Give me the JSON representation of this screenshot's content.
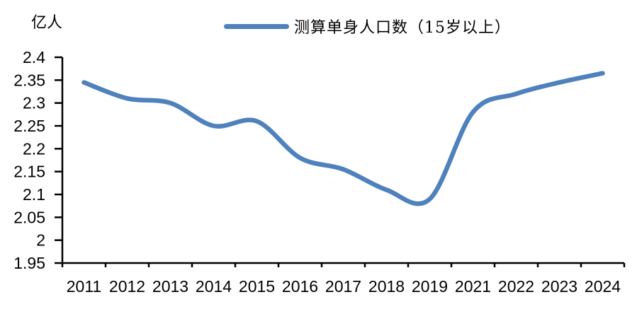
{
  "page": {
    "background": "#FFFFFF"
  },
  "chart_data": {
    "type": "line",
    "title": "",
    "unit_label": "亿人",
    "legend": {
      "label": "测算单身人口数（15岁以上）",
      "swatch_color": "#4F81BD"
    },
    "legend_position": "top-center",
    "categories": [
      "2011",
      "2012",
      "2013",
      "2014",
      "2015",
      "2016",
      "2017",
      "2018",
      "2019",
      "2021",
      "2022",
      "2023",
      "2024"
    ],
    "series": [
      {
        "name": "测算单身人口数（15岁以上）",
        "color": "#4F81BD",
        "values": [
          2.345,
          2.31,
          2.3,
          2.25,
          2.26,
          2.18,
          2.155,
          2.11,
          2.09,
          2.28,
          2.32,
          2.345,
          2.365
        ]
      }
    ],
    "xlabel": "",
    "ylabel": "亿人",
    "ylim": [
      1.95,
      2.4
    ],
    "y_tick_labels": [
      "2.4",
      "2.35",
      "2.3",
      "2.25",
      "2.2",
      "2.15",
      "2.1",
      "2.05",
      "2",
      "1.95"
    ],
    "grid": false,
    "smooth": true,
    "axis_color": "#000000",
    "text_color": "#000000"
  }
}
